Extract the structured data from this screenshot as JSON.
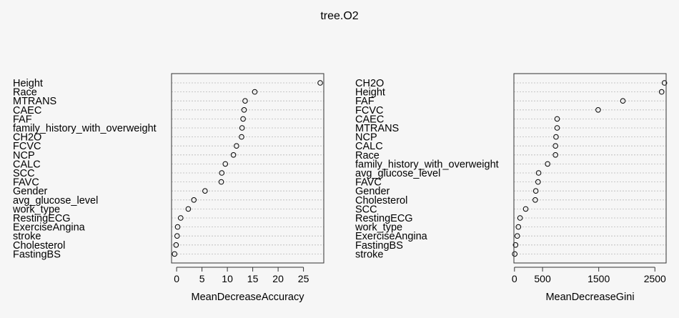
{
  "title": "tree.O2",
  "chart_data": [
    {
      "type": "scatter",
      "xlabel": "MeanDecreaseAccuracy",
      "xlim": [
        -1,
        29
      ],
      "xticks": [
        "0",
        "5",
        "10",
        "15",
        "20",
        "25"
      ],
      "xtick_values": [
        0,
        5,
        10,
        15,
        20,
        25
      ],
      "categories": [
        "Height",
        "Race",
        "MTRANS",
        "CAEC",
        "FAF",
        "family_history_with_overweight",
        "CH2O",
        "FCVC",
        "NCP",
        "CALC",
        "SCC",
        "FAVC",
        "Gender",
        "avg_glucose_level",
        "work_type",
        "RestingECG",
        "ExerciseAngina",
        "stroke",
        "Cholesterol",
        "FastingBS"
      ],
      "values": [
        28.3,
        15.4,
        13.5,
        13.3,
        13.1,
        12.9,
        12.8,
        11.8,
        11.2,
        9.6,
        8.9,
        8.8,
        5.6,
        3.4,
        2.3,
        0.8,
        0.2,
        0.1,
        -0.1,
        -0.4
      ]
    },
    {
      "type": "scatter",
      "xlabel": "MeanDecreaseGini",
      "xlim": [
        -10,
        2700
      ],
      "xticks": [
        "0",
        "500",
        "1500",
        "2500"
      ],
      "xtick_values": [
        0,
        500,
        1500,
        2500
      ],
      "categories": [
        "CH2O",
        "Height",
        "FAF",
        "FCVC",
        "CAEC",
        "MTRANS",
        "NCP",
        "CALC",
        "Race",
        "family_history_with_overweight",
        "avg_glucose_level",
        "FAVC",
        "Gender",
        "Cholesterol",
        "SCC",
        "RestingECG",
        "work_type",
        "ExerciseAngina",
        "FastingBS",
        "stroke"
      ],
      "values": [
        2670,
        2620,
        1930,
        1490,
        760,
        760,
        740,
        730,
        730,
        590,
        430,
        420,
        380,
        370,
        200,
        100,
        70,
        50,
        20,
        5
      ]
    }
  ]
}
